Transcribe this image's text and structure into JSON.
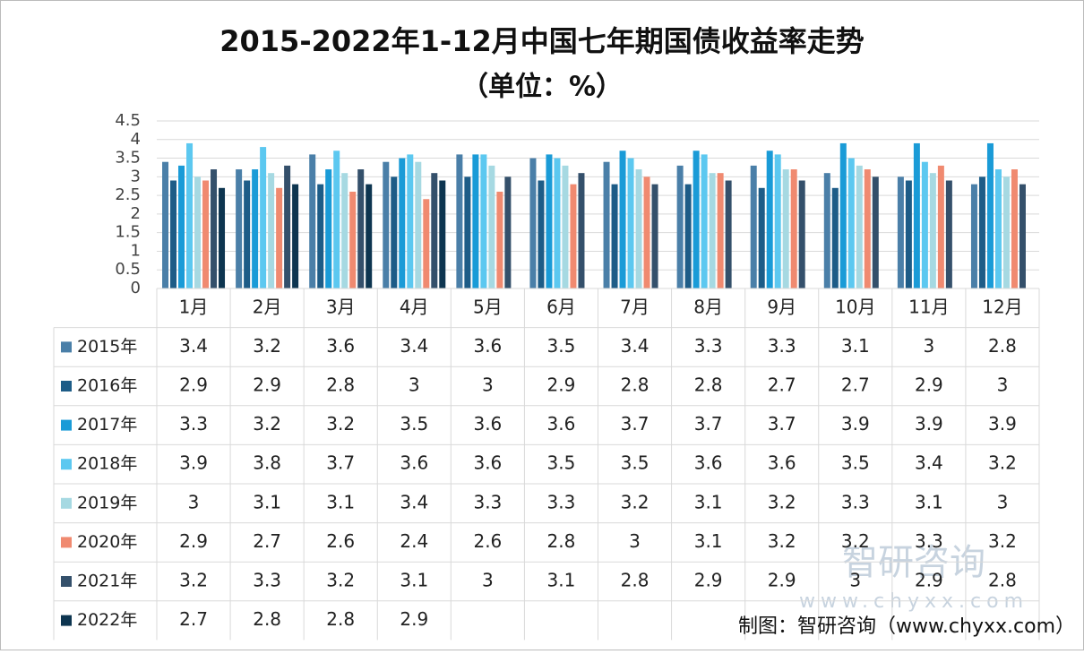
{
  "chart_data": {
    "type": "bar",
    "title": "2015-2022年1-12月中国七年期国债收益率走势",
    "subtitle": "（单位：%）",
    "categories": [
      "1月",
      "2月",
      "3月",
      "4月",
      "5月",
      "6月",
      "7月",
      "8月",
      "9月",
      "10月",
      "11月",
      "12月"
    ],
    "series": [
      {
        "name": "2015年",
        "color": "#4a7fa8",
        "values": [
          3.4,
          3.2,
          3.6,
          3.4,
          3.6,
          3.5,
          3.4,
          3.3,
          3.3,
          3.1,
          3,
          2.8
        ]
      },
      {
        "name": "2016年",
        "color": "#1d5c87",
        "values": [
          2.9,
          2.9,
          2.8,
          3,
          3,
          2.9,
          2.8,
          2.8,
          2.7,
          2.7,
          2.9,
          3
        ]
      },
      {
        "name": "2017年",
        "color": "#1a9bd7",
        "values": [
          3.3,
          3.2,
          3.2,
          3.5,
          3.6,
          3.6,
          3.7,
          3.7,
          3.7,
          3.9,
          3.9,
          3.9
        ]
      },
      {
        "name": "2018年",
        "color": "#5cc8f0",
        "values": [
          3.9,
          3.8,
          3.7,
          3.6,
          3.6,
          3.5,
          3.5,
          3.6,
          3.6,
          3.5,
          3.4,
          3.2
        ]
      },
      {
        "name": "2019年",
        "color": "#a6d9e2",
        "values": [
          3,
          3.1,
          3.1,
          3.4,
          3.3,
          3.3,
          3.2,
          3.1,
          3.2,
          3.3,
          3.1,
          3
        ]
      },
      {
        "name": "2020年",
        "color": "#f08a70",
        "values": [
          2.9,
          2.7,
          2.6,
          2.4,
          2.6,
          2.8,
          3,
          3.1,
          3.2,
          3.2,
          3.3,
          3.2
        ]
      },
      {
        "name": "2021年",
        "color": "#34506b",
        "values": [
          3.2,
          3.3,
          3.2,
          3.1,
          3,
          3.1,
          2.8,
          2.9,
          2.9,
          3,
          2.9,
          2.8
        ]
      },
      {
        "name": "2022年",
        "color": "#0d3550",
        "values": [
          2.7,
          2.8,
          2.8,
          2.9,
          null,
          null,
          null,
          null,
          null,
          null,
          null,
          null
        ]
      }
    ],
    "ylim": [
      0,
      4.5
    ],
    "yticks": [
      0,
      0.5,
      1,
      1.5,
      2,
      2.5,
      3,
      3.5,
      4,
      4.5
    ],
    "grid": true,
    "data_table": true,
    "source": "制图：智研咨询（www.chyxx.com）",
    "watermark": {
      "name": "智研咨询",
      "url": "www.chyxx.com"
    }
  }
}
